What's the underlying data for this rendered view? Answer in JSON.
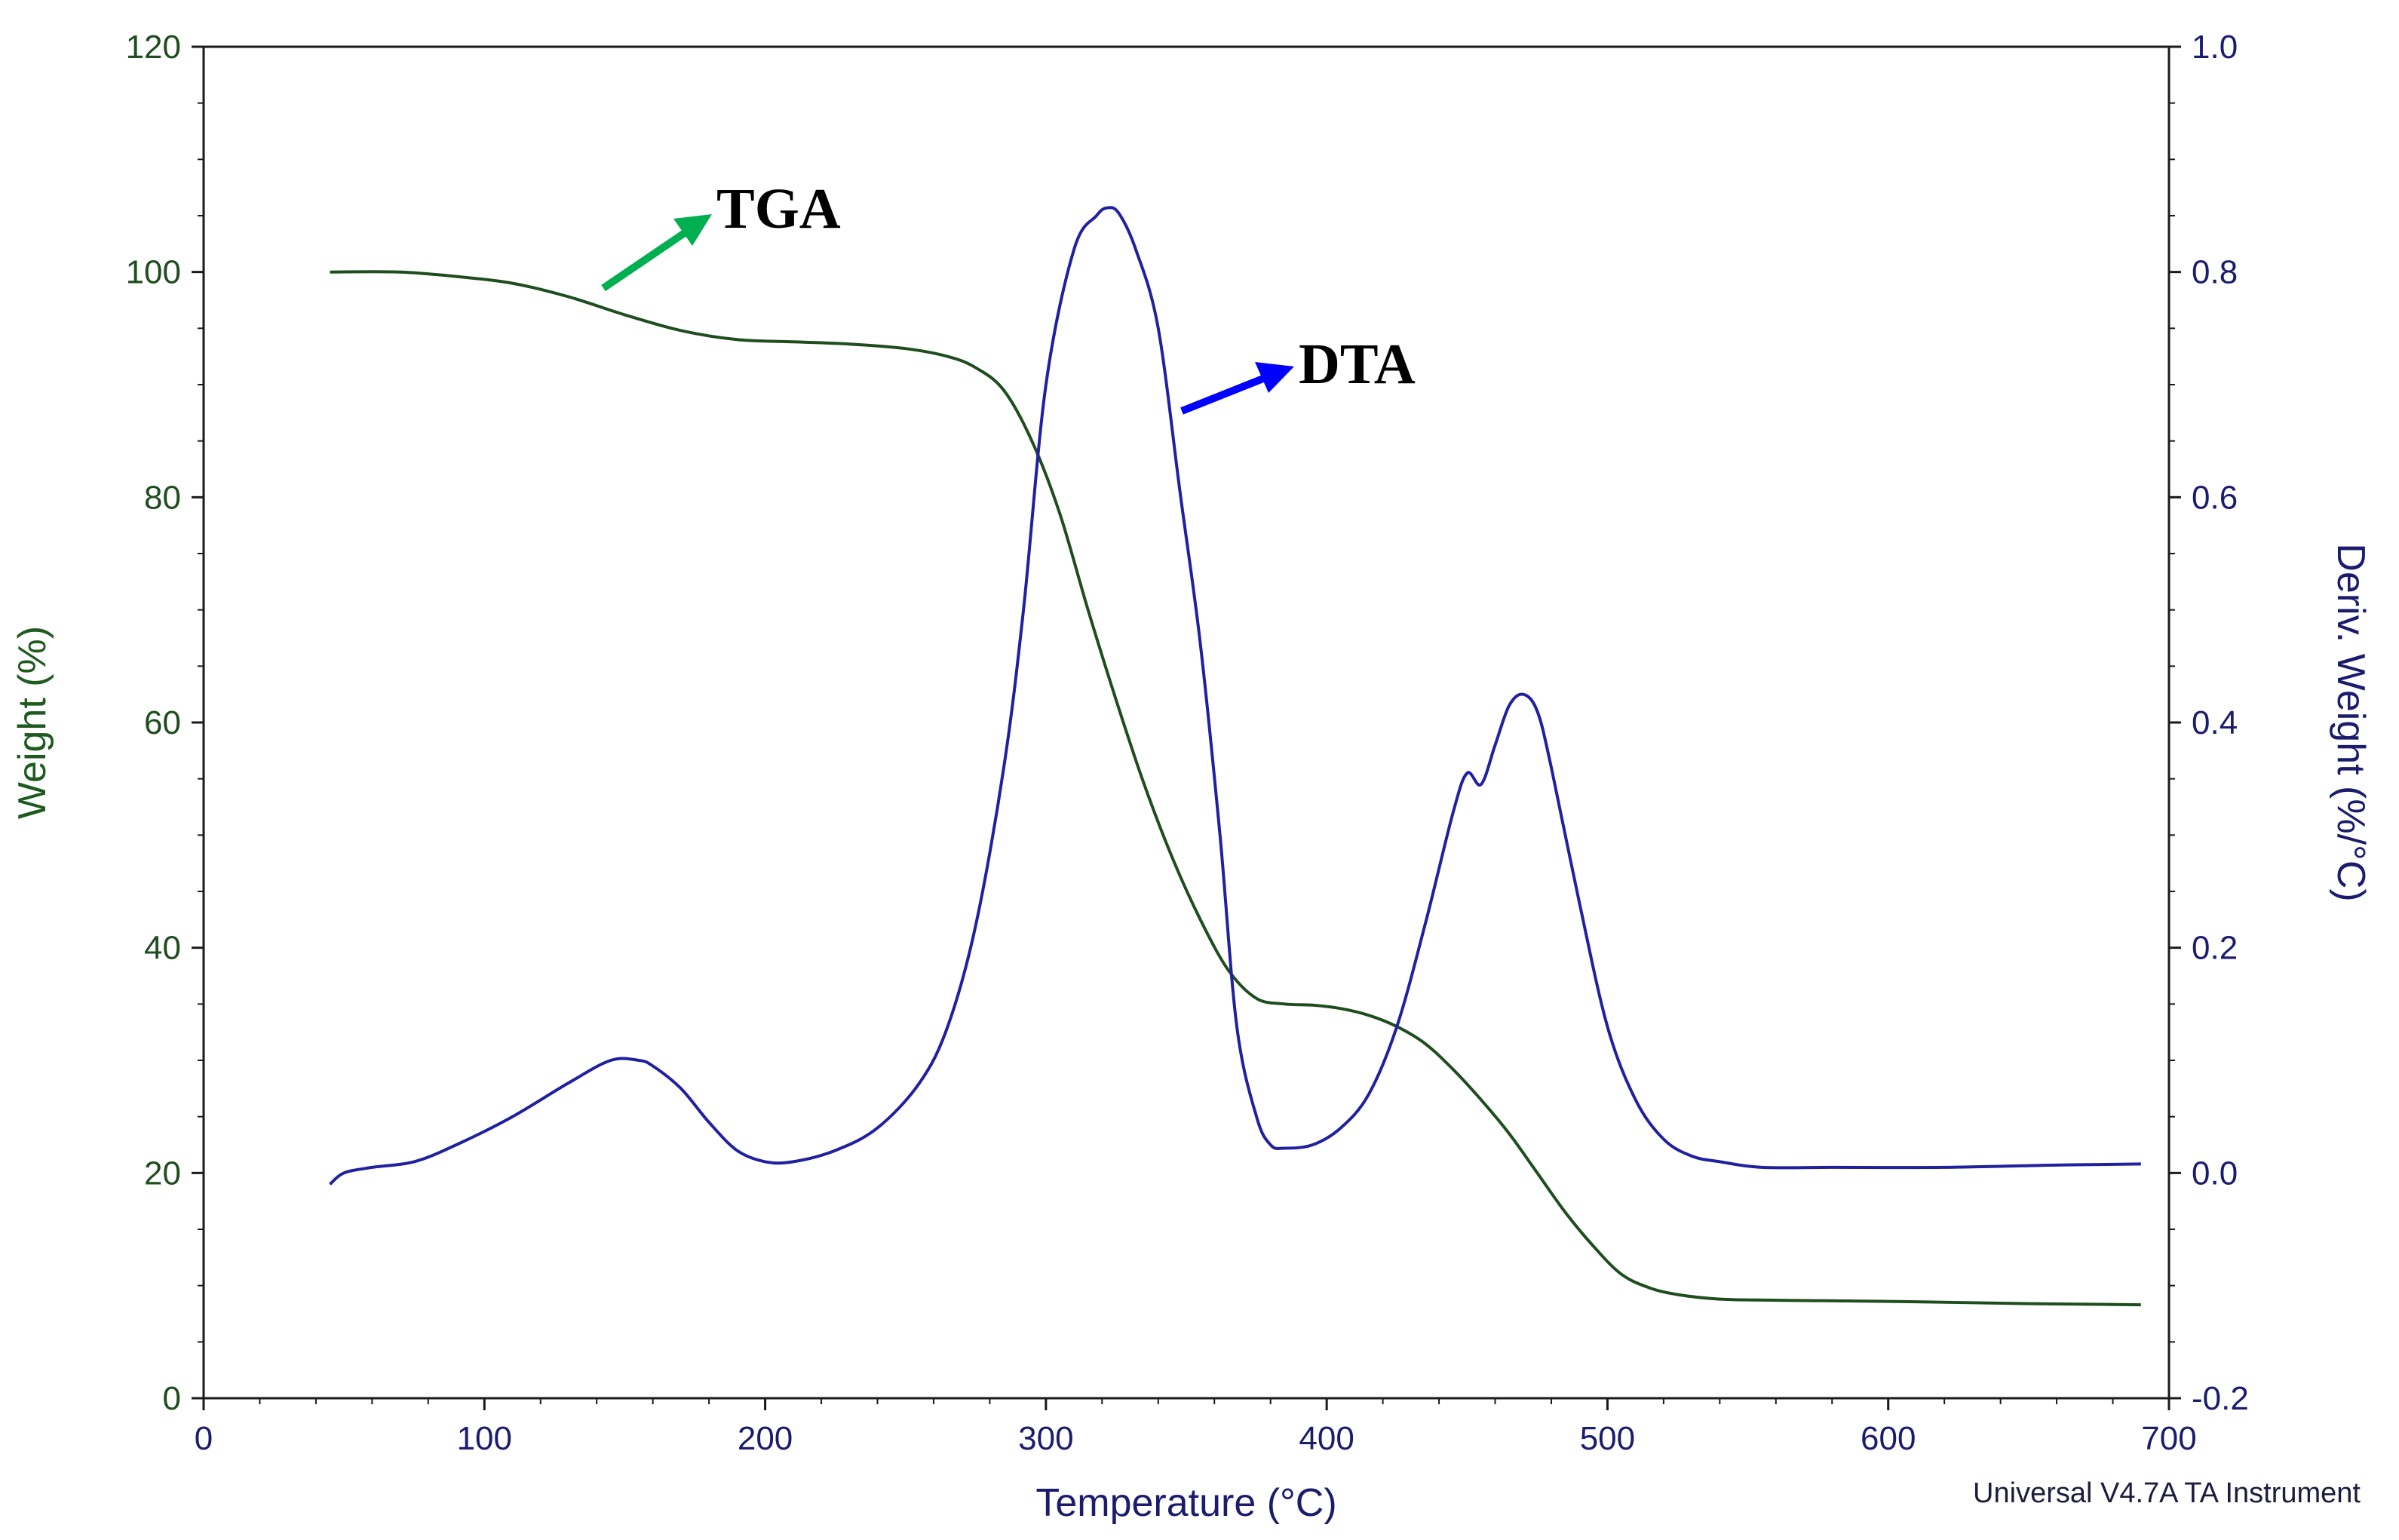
{
  "chart_data": {
    "type": "line",
    "title": "",
    "xlabel": "Temperature (°C)",
    "ylabel_left": "Weight (%)",
    "ylabel_right": "Deriv. Weight (%/°C)",
    "xlim": [
      0,
      700
    ],
    "ylim_left": [
      0,
      120
    ],
    "ylim_right": [
      -0.2,
      1.0
    ],
    "x_ticks": [
      "0",
      "100",
      "200",
      "300",
      "400",
      "500",
      "600",
      "700"
    ],
    "y_left_ticks": [
      "0",
      "20",
      "40",
      "60",
      "80",
      "100",
      "120"
    ],
    "y_right_ticks": [
      "-0.2",
      "0.0",
      "0.2",
      "0.4",
      "0.6",
      "0.8",
      "1.0"
    ],
    "grid": false,
    "footer": "Universal V4.7A TA Instrument",
    "annotations": [
      {
        "text": "TGA",
        "color": "#00b050"
      },
      {
        "text": "DTA",
        "color": "#0000ff"
      }
    ],
    "series": [
      {
        "name": "TGA",
        "axis": "left",
        "color": "#1e4e1e",
        "x": [
          45,
          70,
          90,
          110,
          130,
          150,
          170,
          190,
          210,
          230,
          250,
          265,
          275,
          285,
          295,
          305,
          315,
          325,
          335,
          345,
          355,
          365,
          375,
          385,
          395,
          405,
          415,
          425,
          435,
          445,
          455,
          465,
          475,
          485,
          495,
          505,
          515,
          525,
          540,
          560,
          600,
          650,
          690
        ],
        "y": [
          100,
          100,
          99.6,
          99,
          97.8,
          96.2,
          94.8,
          94,
          93.8,
          93.6,
          93.2,
          92.5,
          91.5,
          89.5,
          85,
          78.5,
          70,
          62,
          54.5,
          48,
          42.5,
          38,
          35.5,
          35,
          34.9,
          34.6,
          34,
          33,
          31.5,
          29.2,
          26.5,
          23.5,
          20,
          16.5,
          13.5,
          11,
          9.8,
          9.2,
          8.8,
          8.7,
          8.6,
          8.4,
          8.3
        ]
      },
      {
        "name": "DTA",
        "axis": "right",
        "color": "#2020a0",
        "x": [
          45,
          50,
          60,
          75,
          90,
          110,
          130,
          145,
          155,
          160,
          170,
          180,
          190,
          200,
          210,
          225,
          240,
          255,
          265,
          275,
          285,
          292,
          300,
          310,
          318,
          322,
          326,
          332,
          340,
          348,
          355,
          362,
          368,
          375,
          380,
          385,
          395,
          405,
          415,
          425,
          435,
          445,
          450,
          455,
          460,
          465,
          470,
          475,
          480,
          490,
          500,
          510,
          520,
          530,
          540,
          555,
          580,
          620,
          660,
          690
        ],
        "y": [
          -0.01,
          0.0,
          0.005,
          0.01,
          0.025,
          0.05,
          0.08,
          0.1,
          0.1,
          0.095,
          0.075,
          0.045,
          0.02,
          0.01,
          0.01,
          0.02,
          0.04,
          0.08,
          0.13,
          0.22,
          0.36,
          0.5,
          0.7,
          0.82,
          0.85,
          0.857,
          0.852,
          0.82,
          0.75,
          0.6,
          0.47,
          0.3,
          0.13,
          0.05,
          0.025,
          0.022,
          0.025,
          0.04,
          0.07,
          0.13,
          0.22,
          0.32,
          0.355,
          0.345,
          0.38,
          0.415,
          0.425,
          0.41,
          0.36,
          0.24,
          0.13,
          0.065,
          0.03,
          0.015,
          0.01,
          0.005,
          0.005,
          0.005,
          0.007,
          0.008
        ]
      }
    ]
  }
}
